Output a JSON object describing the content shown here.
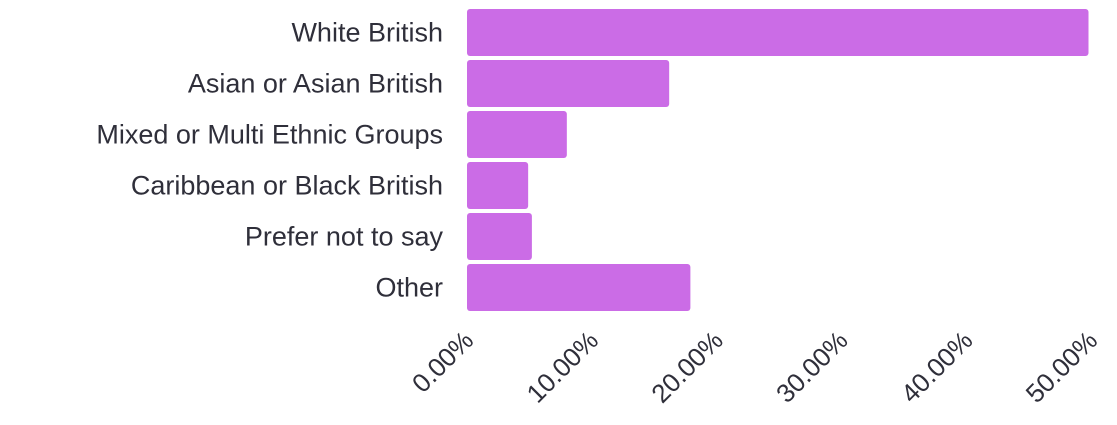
{
  "chart_data": {
    "type": "bar",
    "orientation": "horizontal",
    "categories": [
      "White British",
      "Asian or Asian British",
      "Mixed or Multi Ethnic Groups",
      "Caribbean or Black British",
      "Prefer not to say",
      "Other"
    ],
    "values": [
      49.8,
      16.2,
      8.0,
      4.9,
      5.2,
      17.9
    ],
    "xlim": [
      0,
      50
    ],
    "xticks": [
      0,
      10,
      20,
      30,
      40,
      50
    ],
    "xtick_labels": [
      "0.00%",
      "10.00%",
      "20.00%",
      "30.00%",
      "40.00%",
      "50.00%"
    ],
    "bar_color": "#cb6ce6",
    "grid": false,
    "legend": "none"
  }
}
